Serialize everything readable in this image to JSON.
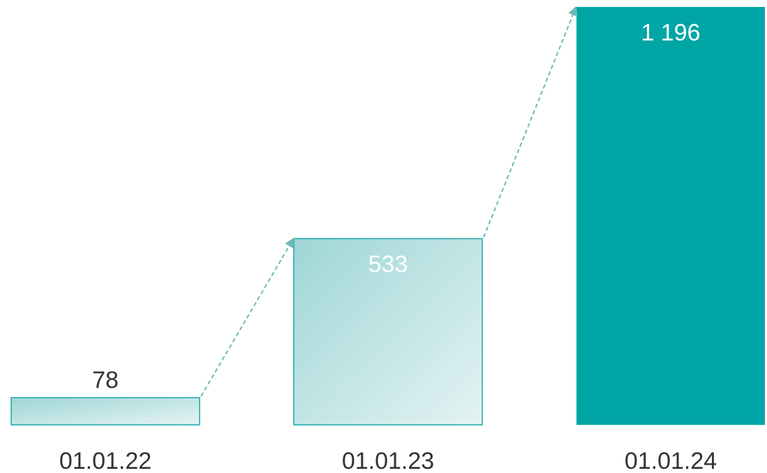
{
  "chart_data": {
    "type": "bar",
    "categories": [
      "01.01.22",
      "01.01.23",
      "01.01.24"
    ],
    "values": [
      78,
      533,
      1196
    ],
    "value_labels": [
      "78",
      "533",
      "1 196"
    ],
    "title": "",
    "xlabel": "",
    "ylabel": "",
    "ylim": [
      0,
      1196
    ],
    "grid": false,
    "legend": "none",
    "colors": {
      "accent": "#00a5a5",
      "bar_light_start": "#9fd6d6",
      "bar_light_end": "#e4f3f3",
      "bar_border": "#1aa7a7",
      "arrow": "#6fb9b9",
      "label_dark": "#333333",
      "label_light": "#ffffff"
    }
  }
}
